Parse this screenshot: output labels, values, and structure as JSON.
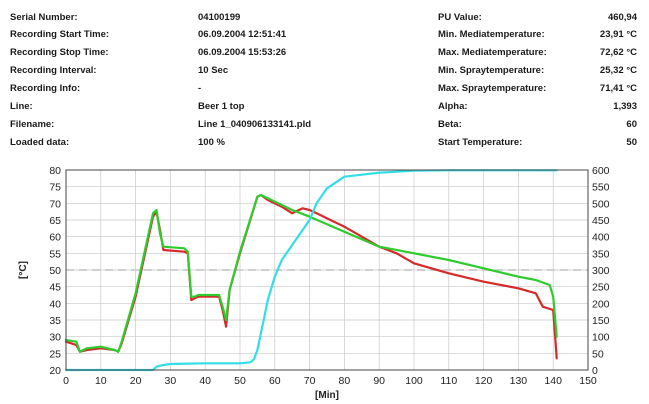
{
  "info": {
    "left": [
      {
        "label": "Serial Number:",
        "value": "04100199"
      },
      {
        "label": "Recording Start Time:",
        "value": "06.09.2004 12:51:41"
      },
      {
        "label": "Recording Stop Time:",
        "value": "06.09.2004 15:53:26"
      },
      {
        "label": "Recording Interval:",
        "value": "10 Sec"
      },
      {
        "label": "Recording Info:",
        "value": "-"
      },
      {
        "label": "Line:",
        "value": "Beer 1 top"
      },
      {
        "label": "Filename:",
        "value": "Line 1_040906133141.pld"
      },
      {
        "label": "Loaded data:",
        "value": "100 %"
      }
    ],
    "right": [
      {
        "label": "PU Value:",
        "value": "460,94"
      },
      {
        "label": "Min. Mediatemperature:",
        "value": "23,91 °C"
      },
      {
        "label": "Max. Mediatemperature:",
        "value": "72,62 °C"
      },
      {
        "label": "Min. Spraytemperature:",
        "value": "25,32 °C"
      },
      {
        "label": "Max. Spraytemperature:",
        "value": "71,41 °C"
      },
      {
        "label": "Alpha:",
        "value": "1,393"
      },
      {
        "label": "Beta:",
        "value": "60"
      },
      {
        "label": "Start Temperature:",
        "value": "50"
      }
    ]
  },
  "chart_data": {
    "type": "line",
    "xlabel": "[Min]",
    "ylabel": "[°C]",
    "xlim": [
      0,
      150
    ],
    "ylim": [
      20,
      80
    ],
    "y2lim": [
      0,
      600
    ],
    "x_ticks": [
      "0",
      "10",
      "20",
      "30",
      "40",
      "50",
      "60",
      "70",
      "80",
      "90",
      "100",
      "110",
      "120",
      "130",
      "140",
      "150"
    ],
    "y_ticks": [
      "20",
      "25",
      "30",
      "35",
      "40",
      "45",
      "50",
      "55",
      "60",
      "65",
      "70",
      "75",
      "80"
    ],
    "y2_ticks": [
      "0",
      "50",
      "100",
      "150",
      "200",
      "250",
      "300",
      "350",
      "400",
      "450",
      "500",
      "550",
      "600"
    ],
    "grid": true,
    "reference_line": {
      "y": 50,
      "style": "dashed"
    },
    "colors": {
      "red": "#d42a2a",
      "green": "#2ecc2e",
      "cyan": "#33dde8",
      "grid": "#c8c8c8",
      "ref": "#d0d0d0"
    },
    "series": [
      {
        "color": "#d42a2a",
        "axis": "left",
        "x": [
          0,
          3,
          4,
          6,
          10,
          14,
          15,
          16,
          20,
          25,
          26,
          27,
          28,
          34,
          35,
          36,
          37,
          38,
          44,
          45,
          46,
          47,
          50,
          55,
          56,
          58,
          62,
          65,
          68,
          70,
          72,
          80,
          85,
          90,
          95,
          100,
          110,
          120,
          130,
          135,
          137,
          140,
          141
        ],
        "y": [
          28.5,
          27.5,
          25.5,
          26,
          26.5,
          26,
          25.5,
          28,
          42,
          66,
          67.5,
          62,
          56,
          55.5,
          55,
          41,
          41.5,
          42,
          42,
          38,
          33,
          44,
          55,
          72,
          72.5,
          71,
          69,
          67,
          68.5,
          68,
          67,
          63,
          60,
          57,
          55,
          52,
          49,
          46.5,
          44.5,
          43,
          39,
          38,
          23.5
        ]
      },
      {
        "color": "#2ecc2e",
        "axis": "left",
        "x": [
          0,
          3,
          4,
          6,
          10,
          14,
          15,
          16,
          20,
          25,
          26,
          27,
          28,
          34,
          35,
          36,
          37,
          38,
          44,
          45,
          46,
          47,
          50,
          55,
          56,
          58,
          62,
          65,
          70,
          80,
          90,
          100,
          110,
          120,
          130,
          135,
          139,
          140,
          141
        ],
        "y": [
          29,
          28.5,
          25.5,
          26.5,
          27,
          26,
          25.5,
          28.5,
          43,
          67,
          68,
          61,
          57,
          56.5,
          55.5,
          42,
          42,
          42.5,
          42.5,
          39,
          35,
          44,
          55.5,
          72,
          72.5,
          71.5,
          69.5,
          68,
          66,
          61.5,
          57,
          55,
          53,
          50.5,
          48,
          47,
          45.5,
          42,
          30
        ]
      },
      {
        "color": "#33dde8",
        "axis": "right",
        "x": [
          0,
          15,
          20,
          25,
          26,
          28,
          30,
          40,
          50,
          53,
          54,
          55,
          56,
          57,
          58,
          60,
          62,
          65,
          68,
          70,
          72,
          75,
          80,
          90,
          100,
          110,
          120,
          130,
          141
        ],
        "y": [
          -5,
          -4,
          -2,
          0,
          10,
          15,
          18,
          20,
          20,
          23,
          32,
          60,
          110,
          160,
          210,
          280,
          330,
          375,
          420,
          450,
          500,
          545,
          580,
          592,
          598,
          599,
          599,
          599,
          599
        ]
      }
    ]
  }
}
